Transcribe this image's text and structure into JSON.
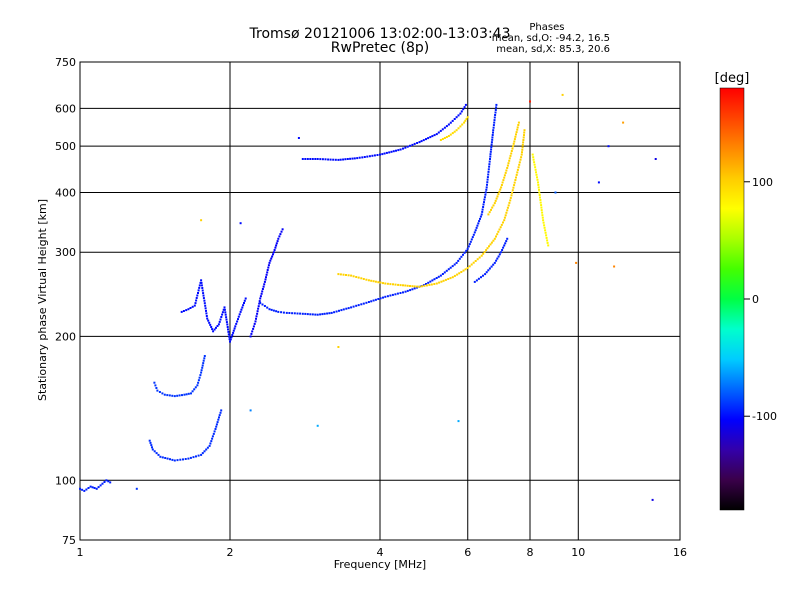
{
  "chart_data": {
    "type": "scatter",
    "title": "Tromsø 20121006 13:02:00-13:03:43",
    "subtitle": "RwPretec (8p)",
    "xlabel": "Frequency [MHz]",
    "ylabel": "Stationary phase Virtual Height [km]",
    "x_scale": "log",
    "y_scale": "log",
    "xlim": [
      1,
      16
    ],
    "ylim": [
      75,
      750
    ],
    "x_ticks": [
      1,
      2,
      4,
      6,
      8,
      10,
      16
    ],
    "x_tick_labels": [
      "1",
      "2",
      "4",
      "6",
      "8",
      "10",
      "16"
    ],
    "y_ticks": [
      75,
      100,
      200,
      300,
      400,
      500,
      600,
      750
    ],
    "y_tick_labels": [
      "75",
      "100",
      "200",
      "300",
      "400",
      "500",
      "600",
      "750"
    ],
    "grid_x": [
      1,
      2,
      4,
      6,
      8,
      10,
      16
    ],
    "grid_y": [
      75,
      100,
      200,
      300,
      400,
      500,
      600,
      750
    ],
    "grid": true,
    "colorbar": {
      "label": "[deg]",
      "range": [
        -180,
        180
      ],
      "ticks": [
        -100,
        0,
        100
      ],
      "tick_labels": [
        "-100",
        "0",
        "100"
      ],
      "gradient": [
        "#000000",
        "#3a004a",
        "#3300aa",
        "#0000ff",
        "#0066ff",
        "#00ccff",
        "#00ffcc",
        "#00ff44",
        "#44ff00",
        "#aaff00",
        "#ffff00",
        "#ffcc00",
        "#ff8800",
        "#ff4400",
        "#ff0000"
      ]
    },
    "phase_stats": {
      "header": "Phases",
      "line_o": "mean, sd,O: -94.2, 16.5",
      "line_x": "mean, sd,X:  85.3, 20.6"
    },
    "traces": [
      {
        "x": [
          1.0,
          1.02,
          1.05,
          1.08,
          1.13,
          1.15
        ],
        "y": [
          96,
          95,
          97,
          96,
          100,
          99
        ],
        "phase": -95
      },
      {
        "x": [
          1.41,
          1.43,
          1.48,
          1.55,
          1.62,
          1.67,
          1.72,
          1.75,
          1.78
        ],
        "y": [
          160,
          154,
          151,
          150,
          151,
          152,
          158,
          168,
          182
        ],
        "phase": -90
      },
      {
        "x": [
          1.38,
          1.4,
          1.45,
          1.55,
          1.65,
          1.75,
          1.82,
          1.87,
          1.92
        ],
        "y": [
          121,
          116,
          112,
          110,
          111,
          113,
          118,
          128,
          140
        ],
        "phase": -92
      },
      {
        "x": [
          1.6,
          1.65,
          1.7,
          1.75,
          1.8,
          1.85,
          1.9,
          1.95,
          2.0,
          2.05,
          2.1,
          2.15
        ],
        "y": [
          225,
          228,
          232,
          262,
          218,
          205,
          212,
          230,
          195,
          210,
          225,
          240
        ],
        "phase": -100
      },
      {
        "x": [
          2.2,
          2.25,
          2.3,
          2.35,
          2.4,
          2.45,
          2.5,
          2.55
        ],
        "y": [
          200,
          215,
          240,
          260,
          285,
          300,
          320,
          335
        ],
        "phase": -105
      },
      {
        "x": [
          2.3,
          2.4,
          2.5,
          2.6,
          2.8,
          3.0,
          3.2,
          3.5,
          3.8,
          4.1,
          4.5,
          4.9,
          5.3,
          5.7,
          6.0,
          6.2,
          6.4,
          6.55,
          6.65,
          6.75,
          6.85
        ],
        "y": [
          235,
          228,
          225,
          224,
          223,
          222,
          224,
          230,
          236,
          242,
          248,
          256,
          268,
          285,
          305,
          330,
          360,
          410,
          470,
          540,
          610
        ],
        "phase": -95
      },
      {
        "x": [
          2.8,
          3.0,
          3.3,
          3.6,
          4.0,
          4.4,
          4.8,
          5.2,
          5.5,
          5.8,
          5.95
        ],
        "y": [
          470,
          470,
          468,
          472,
          480,
          492,
          510,
          530,
          555,
          585,
          610
        ],
        "phase": -100
      },
      {
        "x": [
          3.3,
          3.5,
          3.8,
          4.1,
          4.4,
          4.8,
          5.2,
          5.6,
          6.0,
          6.4,
          6.8,
          7.1,
          7.3,
          7.5,
          7.7,
          7.8
        ],
        "y": [
          270,
          268,
          262,
          258,
          256,
          254,
          258,
          266,
          278,
          295,
          320,
          350,
          385,
          430,
          480,
          540
        ],
        "phase": 100
      },
      {
        "x": [
          5.3,
          5.5,
          5.7,
          5.9,
          6.0
        ],
        "y": [
          515,
          525,
          540,
          560,
          575
        ],
        "phase": 95
      },
      {
        "x": [
          6.6,
          6.8,
          7.0,
          7.2,
          7.4,
          7.6
        ],
        "y": [
          360,
          380,
          410,
          450,
          500,
          560
        ],
        "phase": 100
      },
      {
        "x": [
          6.2,
          6.5,
          6.8,
          7.0,
          7.2
        ],
        "y": [
          260,
          270,
          285,
          300,
          320
        ],
        "phase": -95
      },
      {
        "x": [
          8.1,
          8.3,
          8.5,
          8.7
        ],
        "y": [
          480,
          420,
          350,
          310
        ],
        "phase": 80
      }
    ],
    "scatter_points": [
      {
        "x": 1.3,
        "y": 96,
        "phase": -90
      },
      {
        "x": 1.75,
        "y": 350,
        "phase": 100
      },
      {
        "x": 2.1,
        "y": 345,
        "phase": -100
      },
      {
        "x": 2.2,
        "y": 140,
        "phase": -70
      },
      {
        "x": 2.75,
        "y": 520,
        "phase": -100
      },
      {
        "x": 3.0,
        "y": 130,
        "phase": -60
      },
      {
        "x": 3.3,
        "y": 190,
        "phase": 100
      },
      {
        "x": 5.75,
        "y": 133,
        "phase": -60
      },
      {
        "x": 9.0,
        "y": 400,
        "phase": -80
      },
      {
        "x": 9.3,
        "y": 640,
        "phase": 100
      },
      {
        "x": 9.9,
        "y": 285,
        "phase": 130
      },
      {
        "x": 11.0,
        "y": 420,
        "phase": -100
      },
      {
        "x": 11.5,
        "y": 500,
        "phase": -100
      },
      {
        "x": 11.8,
        "y": 280,
        "phase": 130
      },
      {
        "x": 12.3,
        "y": 560,
        "phase": 120
      },
      {
        "x": 14.1,
        "y": 91,
        "phase": -110
      },
      {
        "x": 14.3,
        "y": 470,
        "phase": -110
      },
      {
        "x": 8.0,
        "y": 620,
        "phase": 170
      }
    ]
  }
}
